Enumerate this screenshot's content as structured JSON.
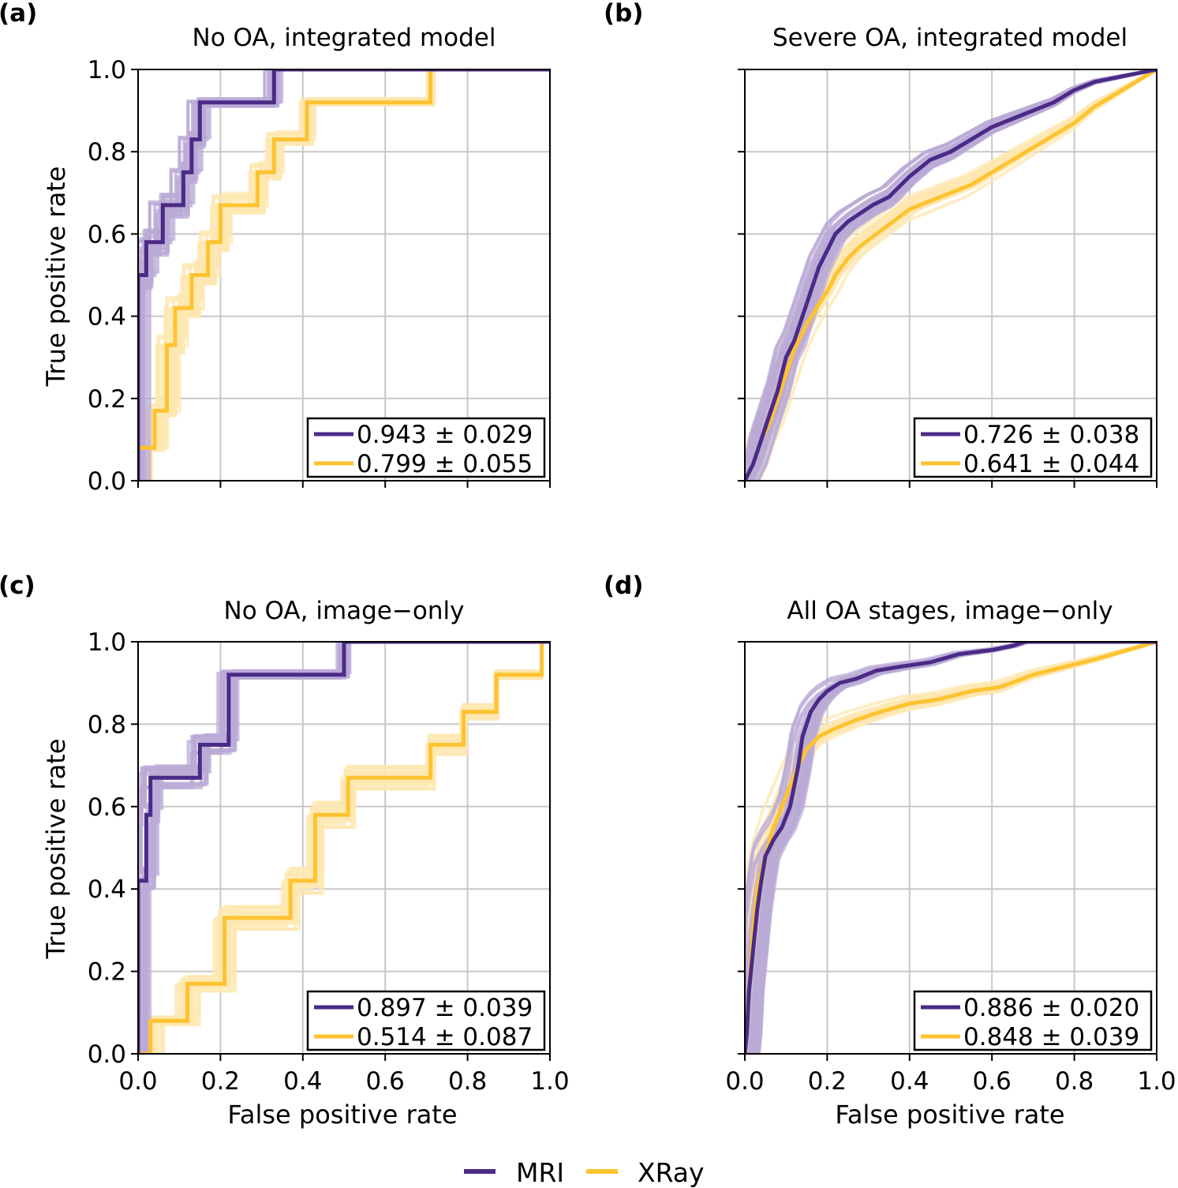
{
  "colors": {
    "mri": "#4b2a87",
    "xray": "#fdc330",
    "mri_light": "#b9a9d6",
    "xray_light": "#fde7b0",
    "grid": "#c8c8c8"
  },
  "legend": {
    "mri_label": "MRI",
    "xray_label": "XRay"
  },
  "axis_labels": {
    "x": "False positive rate",
    "y": "True positive rate"
  },
  "chart_data": [
    {
      "type": "line",
      "panel": "(a)",
      "title": "No OA, integrated model",
      "xlabel": "",
      "ylabel": "True positive rate",
      "xlim": [
        0,
        1
      ],
      "ylim": [
        0,
        1
      ],
      "xticks": [
        0.0,
        0.2,
        0.4,
        0.6,
        0.8,
        1.0
      ],
      "yticks": [
        "0.0",
        "0.2",
        "0.4",
        "0.6",
        "0.8",
        "1.0"
      ],
      "show_x_ticklabels": false,
      "show_y_ticklabels": true,
      "grid": true,
      "auc": {
        "mri": "0.943 ± 0.029",
        "xray": "0.799 ± 0.055"
      },
      "series": [
        {
          "name": "MRI",
          "x": [
            0,
            0,
            0.02,
            0.02,
            0.04,
            0.04,
            0.06,
            0.06,
            0.11,
            0.11,
            0.13,
            0.13,
            0.15,
            0.15,
            0.2,
            0.2,
            0.33,
            0.33,
            1.0
          ],
          "y": [
            0,
            0.5,
            0.5,
            0.58,
            0.58,
            0.58,
            0.58,
            0.67,
            0.67,
            0.75,
            0.75,
            0.83,
            0.83,
            0.92,
            0.92,
            0.92,
            0.92,
            1.0,
            1.0
          ]
        },
        {
          "name": "XRay",
          "x": [
            0,
            0,
            0.04,
            0.04,
            0.07,
            0.07,
            0.09,
            0.09,
            0.13,
            0.13,
            0.17,
            0.17,
            0.2,
            0.2,
            0.29,
            0.29,
            0.33,
            0.33,
            0.41,
            0.41,
            0.71,
            0.71,
            1.0
          ],
          "y": [
            0,
            0.08,
            0.08,
            0.17,
            0.17,
            0.33,
            0.33,
            0.42,
            0.42,
            0.5,
            0.5,
            0.58,
            0.58,
            0.67,
            0.67,
            0.75,
            0.75,
            0.83,
            0.83,
            0.92,
            0.92,
            1.0,
            1.0
          ]
        }
      ]
    },
    {
      "type": "line",
      "panel": "(b)",
      "title": "Severe OA, integrated model",
      "xlabel": "",
      "ylabel": "",
      "xlim": [
        0,
        1
      ],
      "ylim": [
        0,
        1
      ],
      "xticks": [
        0.0,
        0.2,
        0.4,
        0.6,
        0.8,
        1.0
      ],
      "yticks": [
        0.0,
        0.2,
        0.4,
        0.6,
        0.8,
        1.0
      ],
      "show_x_ticklabels": false,
      "show_y_ticklabels": false,
      "grid": true,
      "auc": {
        "mri": "0.726 ± 0.038",
        "xray": "0.641 ± 0.044"
      },
      "series": [
        {
          "name": "MRI",
          "x": [
            0,
            0.02,
            0.04,
            0.06,
            0.08,
            0.1,
            0.12,
            0.14,
            0.16,
            0.18,
            0.2,
            0.22,
            0.25,
            0.28,
            0.31,
            0.35,
            0.4,
            0.45,
            0.5,
            0.55,
            0.6,
            0.65,
            0.7,
            0.75,
            0.8,
            0.85,
            0.9,
            0.95,
            1.0
          ],
          "y": [
            0,
            0.04,
            0.1,
            0.16,
            0.22,
            0.3,
            0.34,
            0.4,
            0.46,
            0.52,
            0.56,
            0.6,
            0.63,
            0.65,
            0.67,
            0.69,
            0.74,
            0.78,
            0.8,
            0.83,
            0.86,
            0.88,
            0.9,
            0.92,
            0.95,
            0.97,
            0.98,
            0.99,
            1.0
          ]
        },
        {
          "name": "XRay",
          "x": [
            0,
            0.02,
            0.04,
            0.06,
            0.08,
            0.1,
            0.12,
            0.15,
            0.18,
            0.2,
            0.22,
            0.25,
            0.28,
            0.32,
            0.36,
            0.4,
            0.45,
            0.5,
            0.55,
            0.6,
            0.65,
            0.7,
            0.75,
            0.8,
            0.85,
            0.9,
            0.95,
            1.0
          ],
          "y": [
            0,
            0.04,
            0.1,
            0.14,
            0.2,
            0.26,
            0.32,
            0.38,
            0.43,
            0.46,
            0.5,
            0.54,
            0.57,
            0.6,
            0.63,
            0.66,
            0.68,
            0.7,
            0.72,
            0.75,
            0.78,
            0.81,
            0.84,
            0.87,
            0.91,
            0.94,
            0.97,
            1.0
          ]
        }
      ]
    },
    {
      "type": "line",
      "panel": "(c)",
      "title": "No OA, image−only",
      "xlabel": "False positive rate",
      "ylabel": "True positive rate",
      "xlim": [
        0,
        1
      ],
      "ylim": [
        0,
        1
      ],
      "xticks": [
        "0.0",
        "0.2",
        "0.4",
        "0.6",
        "0.8",
        "1.0"
      ],
      "yticks": [
        "0.0",
        "0.2",
        "0.4",
        "0.6",
        "0.8",
        "1.0"
      ],
      "show_x_ticklabels": true,
      "show_y_ticklabels": true,
      "grid": true,
      "auc": {
        "mri": "0.897 ± 0.039",
        "xray": "0.514 ± 0.087"
      },
      "series": [
        {
          "name": "MRI",
          "x": [
            0,
            0,
            0.02,
            0.02,
            0.03,
            0.03,
            0.15,
            0.15,
            0.22,
            0.22,
            0.5,
            0.5,
            1.0
          ],
          "y": [
            0,
            0.42,
            0.42,
            0.58,
            0.58,
            0.67,
            0.67,
            0.75,
            0.75,
            0.92,
            0.92,
            1.0,
            1.0
          ]
        },
        {
          "name": "XRay",
          "x": [
            0,
            0.03,
            0.03,
            0.12,
            0.12,
            0.21,
            0.21,
            0.31,
            0.31,
            0.37,
            0.37,
            0.43,
            0.43,
            0.51,
            0.51,
            0.71,
            0.71,
            0.79,
            0.79,
            0.87,
            0.87,
            0.98,
            0.98,
            1.0
          ],
          "y": [
            0,
            0,
            0.08,
            0.08,
            0.17,
            0.17,
            0.33,
            0.33,
            0.33,
            0.33,
            0.42,
            0.42,
            0.58,
            0.58,
            0.67,
            0.67,
            0.75,
            0.75,
            0.83,
            0.83,
            0.92,
            0.92,
            1.0,
            1.0
          ]
        }
      ]
    },
    {
      "type": "line",
      "panel": "(d)",
      "title": "All OA stages, image−only",
      "xlabel": "False positive rate",
      "ylabel": "",
      "xlim": [
        0,
        1
      ],
      "ylim": [
        0,
        1
      ],
      "xticks": [
        "0.0",
        "0.2",
        "0.4",
        "0.6",
        "0.8",
        "1.0"
      ],
      "yticks": [
        0.0,
        0.2,
        0.4,
        0.6,
        0.8,
        1.0
      ],
      "show_x_ticklabels": true,
      "show_y_ticklabels": false,
      "grid": true,
      "auc": {
        "mri": "0.886 ± 0.020",
        "xray": "0.848 ± 0.039"
      },
      "series": [
        {
          "name": "MRI",
          "x": [
            0,
            0.005,
            0.01,
            0.02,
            0.03,
            0.04,
            0.05,
            0.07,
            0.09,
            0.11,
            0.13,
            0.14,
            0.15,
            0.16,
            0.18,
            0.2,
            0.23,
            0.27,
            0.32,
            0.38,
            0.45,
            0.52,
            0.6,
            0.65,
            0.68,
            1.0
          ],
          "y": [
            0,
            0.05,
            0.15,
            0.25,
            0.35,
            0.42,
            0.48,
            0.52,
            0.55,
            0.6,
            0.7,
            0.77,
            0.8,
            0.83,
            0.86,
            0.88,
            0.9,
            0.91,
            0.93,
            0.94,
            0.95,
            0.97,
            0.98,
            0.99,
            1.0,
            1.0
          ]
        },
        {
          "name": "XRay",
          "x": [
            0,
            0.01,
            0.02,
            0.03,
            0.05,
            0.07,
            0.09,
            0.11,
            0.13,
            0.15,
            0.18,
            0.22,
            0.27,
            0.33,
            0.4,
            0.47,
            0.55,
            0.62,
            0.7,
            0.78,
            0.86,
            0.93,
            1.0
          ],
          "y": [
            0,
            0.15,
            0.3,
            0.4,
            0.48,
            0.55,
            0.6,
            0.65,
            0.7,
            0.74,
            0.77,
            0.79,
            0.81,
            0.83,
            0.85,
            0.86,
            0.88,
            0.89,
            0.92,
            0.94,
            0.96,
            0.98,
            1.0
          ]
        }
      ]
    }
  ]
}
